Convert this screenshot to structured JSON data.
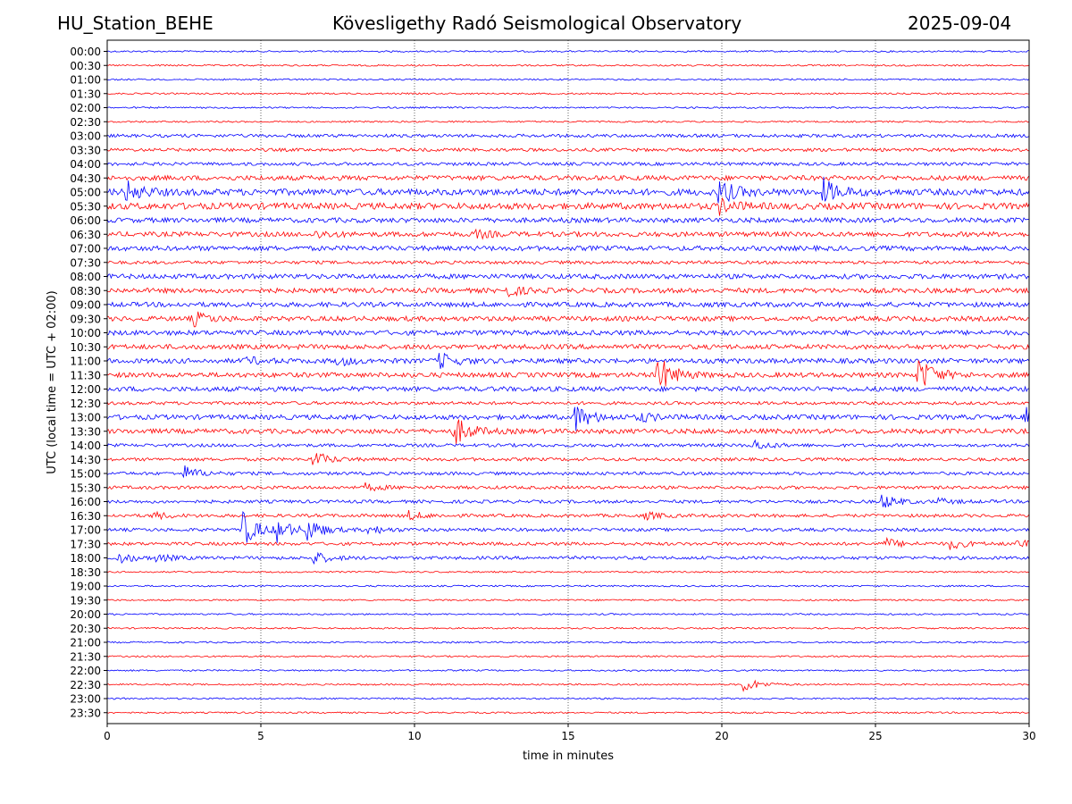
{
  "header": {
    "station": "HU_Station_BEHE",
    "title": "Kövesligethy Radó Seismological Observatory",
    "date": "2025-09-04"
  },
  "chart_data": {
    "type": "line",
    "title": "Kövesligethy Radó Seismological Observatory",
    "xlabel": "time in minutes",
    "ylabel": "UTC (local time = UTC + 02:00)",
    "xlim": [
      0,
      30
    ],
    "x_ticks": [
      "0",
      "5",
      "10",
      "15",
      "20",
      "25",
      "30"
    ],
    "x_tick_values": [
      0,
      5,
      10,
      15,
      20,
      25,
      30
    ],
    "grid": "vertical dotted at x ticks",
    "row_labels": [
      "00:00",
      "00:30",
      "01:00",
      "01:30",
      "02:00",
      "02:30",
      "03:00",
      "03:30",
      "04:00",
      "04:30",
      "05:00",
      "05:30",
      "06:00",
      "06:30",
      "07:00",
      "07:30",
      "08:00",
      "08:30",
      "09:00",
      "09:30",
      "10:00",
      "10:30",
      "11:00",
      "11:30",
      "12:00",
      "12:30",
      "13:00",
      "13:30",
      "14:00",
      "14:30",
      "15:00",
      "15:30",
      "16:00",
      "16:30",
      "17:00",
      "17:30",
      "18:00",
      "18:30",
      "19:00",
      "19:30",
      "20:00",
      "20:30",
      "21:00",
      "21:30",
      "22:00",
      "22:30",
      "23:00",
      "23:30"
    ],
    "colors": {
      "even_rows": "#0000ff",
      "odd_rows": "#ff0000"
    },
    "noise_level": [
      1,
      1,
      1,
      1,
      1,
      1,
      2,
      2,
      2,
      3,
      4,
      4,
      3,
      3,
      3,
      2,
      3,
      3,
      3,
      3,
      3,
      3,
      3,
      3,
      3,
      2,
      3,
      3,
      2,
      2,
      2,
      2,
      2,
      2,
      2,
      2,
      2,
      1,
      1,
      1,
      1,
      1,
      1,
      1,
      1,
      1,
      1,
      1
    ],
    "events": [
      {
        "row": "05:00",
        "minute": 0.6,
        "amplitude": 12
      },
      {
        "row": "05:00",
        "minute": 19.9,
        "amplitude": 14
      },
      {
        "row": "05:00",
        "minute": 23.3,
        "amplitude": 14
      },
      {
        "row": "05:30",
        "minute": 19.9,
        "amplitude": 8
      },
      {
        "row": "06:30",
        "minute": 6.8,
        "amplitude": 4
      },
      {
        "row": "06:30",
        "minute": 12.0,
        "amplitude": 4
      },
      {
        "row": "08:30",
        "minute": 13.0,
        "amplitude": 6
      },
      {
        "row": "09:30",
        "minute": 2.8,
        "amplitude": 8
      },
      {
        "row": "11:00",
        "minute": 4.5,
        "amplitude": 4
      },
      {
        "row": "11:00",
        "minute": 7.5,
        "amplitude": 5
      },
      {
        "row": "11:00",
        "minute": 10.8,
        "amplitude": 9
      },
      {
        "row": "11:30",
        "minute": 17.9,
        "amplitude": 22
      },
      {
        "row": "11:30",
        "minute": 26.4,
        "amplitude": 20
      },
      {
        "row": "13:00",
        "minute": 15.2,
        "amplitude": 15
      },
      {
        "row": "13:00",
        "minute": 17.3,
        "amplitude": 5
      },
      {
        "row": "13:00",
        "minute": 29.9,
        "amplitude": 10
      },
      {
        "row": "13:30",
        "minute": 11.3,
        "amplitude": 16
      },
      {
        "row": "14:00",
        "minute": 21.0,
        "amplitude": 6
      },
      {
        "row": "14:30",
        "minute": 6.7,
        "amplitude": 9
      },
      {
        "row": "15:00",
        "minute": 2.5,
        "amplitude": 8
      },
      {
        "row": "15:30",
        "minute": 8.4,
        "amplitude": 4
      },
      {
        "row": "16:00",
        "minute": 25.2,
        "amplitude": 8
      },
      {
        "row": "16:00",
        "minute": 27.0,
        "amplitude": 3
      },
      {
        "row": "16:30",
        "minute": 1.5,
        "amplitude": 4
      },
      {
        "row": "16:30",
        "minute": 9.8,
        "amplitude": 5
      },
      {
        "row": "16:30",
        "minute": 17.5,
        "amplitude": 4
      },
      {
        "row": "17:00",
        "minute": 4.4,
        "amplitude": 20
      },
      {
        "row": "17:00",
        "minute": 5.5,
        "amplitude": 12
      },
      {
        "row": "17:00",
        "minute": 6.5,
        "amplitude": 12
      },
      {
        "row": "17:00",
        "minute": 8.5,
        "amplitude": 5
      },
      {
        "row": "17:30",
        "minute": 25.3,
        "amplitude": 6
      },
      {
        "row": "17:30",
        "minute": 27.4,
        "amplitude": 6
      },
      {
        "row": "17:30",
        "minute": 29.5,
        "amplitude": 5
      },
      {
        "row": "18:00",
        "minute": 0.3,
        "amplitude": 7
      },
      {
        "row": "18:00",
        "minute": 1.6,
        "amplitude": 4
      },
      {
        "row": "18:00",
        "minute": 6.7,
        "amplitude": 7
      },
      {
        "row": "22:30",
        "minute": 20.7,
        "amplitude": 9
      }
    ]
  }
}
